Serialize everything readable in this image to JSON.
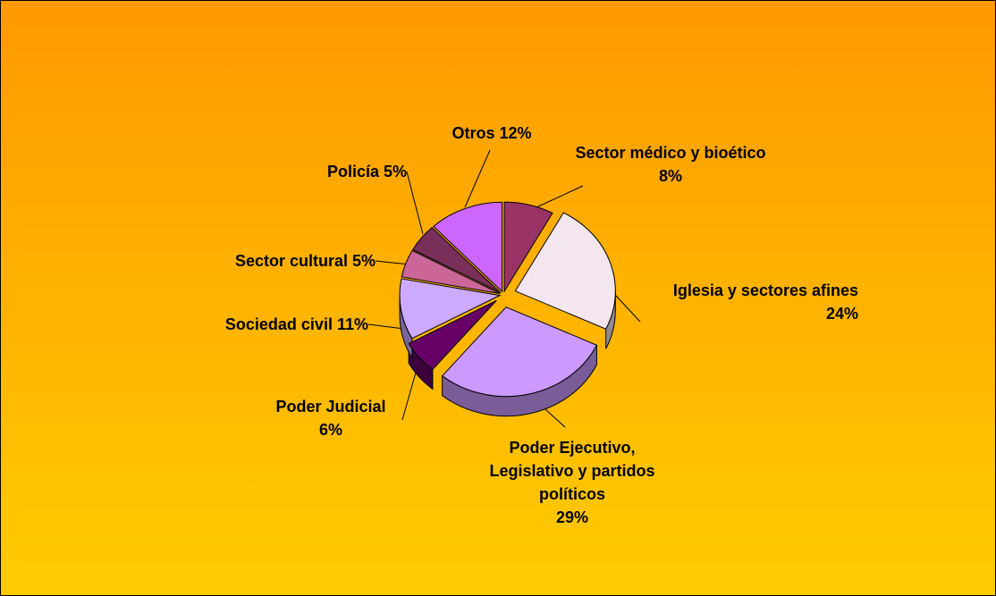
{
  "chart_data": {
    "type": "pie",
    "categories": [
      "Sector médico y bioético",
      "Iglesia y sectores afines",
      "Poder Ejecutivo, Legislativo y partidos políticos",
      "Poder Judicial",
      "Sociedad civil",
      "Sector cultural",
      "Policía",
      "Otros"
    ],
    "values": [
      8,
      24,
      29,
      6,
      11,
      5,
      5,
      12
    ],
    "value_labels": [
      "8%",
      "24%",
      "29%",
      "6%",
      "11%",
      "5%",
      "5%",
      "12%"
    ],
    "colors": [
      "#993366",
      "#f3e6ee",
      "#cc99ff",
      "#660066",
      "#ccaaff",
      "#cc6699",
      "#7a2e5a",
      "#cc66ff"
    ]
  }
}
